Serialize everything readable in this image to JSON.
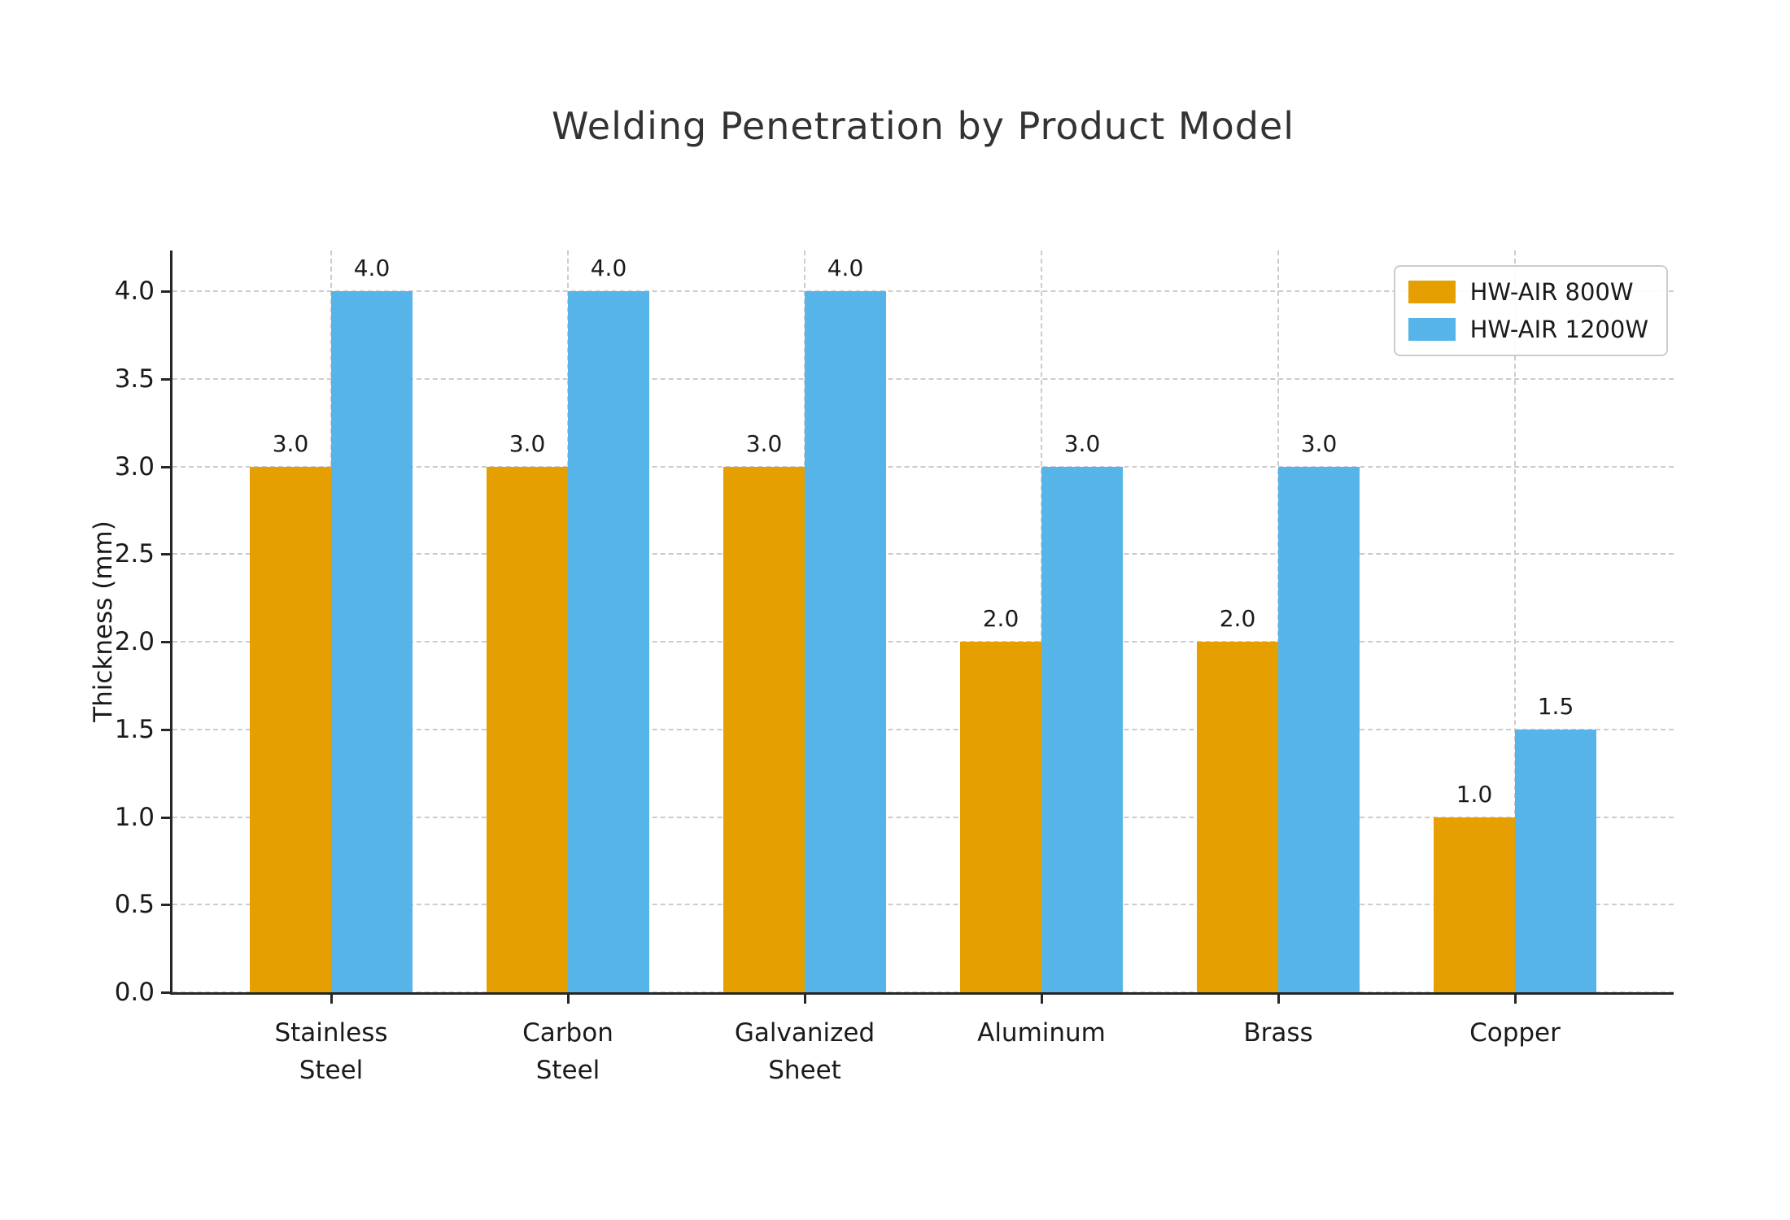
{
  "chart_data": {
    "type": "bar",
    "title": "Welding Penetration by Product Model",
    "xlabel": "",
    "ylabel": "Thickness (mm)",
    "categories": [
      "Stainless\nSteel",
      "Carbon\nSteel",
      "Galvanized\nSheet",
      "Aluminum",
      "Brass",
      "Copper"
    ],
    "series": [
      {
        "name": "HW-AIR 800W",
        "color": "#E69F00",
        "values": [
          3.0,
          3.0,
          3.0,
          2.0,
          2.0,
          1.0
        ]
      },
      {
        "name": "HW-AIR 1200W",
        "color": "#56B4E9",
        "values": [
          4.0,
          4.0,
          4.0,
          3.0,
          3.0,
          1.5
        ]
      }
    ],
    "yticks": [
      0.0,
      0.5,
      1.0,
      1.5,
      2.0,
      2.5,
      3.0,
      3.5,
      4.0
    ],
    "ylim": [
      0,
      4.23
    ],
    "grid": true,
    "grid_style": "dashed",
    "legend_position": "upper right",
    "value_labels": true,
    "colors": {
      "spine": "#262626",
      "grid": "#cccccc",
      "text": "#1a1a1a",
      "title": "#333333"
    }
  }
}
